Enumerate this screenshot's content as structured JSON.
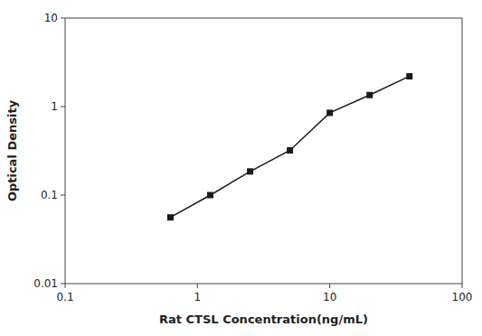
{
  "chart_data": {
    "type": "line",
    "x": [
      0.625,
      1.25,
      2.5,
      5,
      10,
      20,
      40
    ],
    "values": [
      0.056,
      0.1,
      0.185,
      0.32,
      0.85,
      1.35,
      2.2
    ],
    "xlabel": "Rat CTSL Concentration(ng/mL)",
    "ylabel": "Optical Density",
    "xlim": [
      0.1,
      100
    ],
    "ylim": [
      0.01,
      10
    ],
    "xticks": [
      0.1,
      1,
      10,
      100
    ],
    "yticks": [
      0.01,
      0.1,
      1,
      10
    ],
    "log": true,
    "grid": false,
    "color": "#1a1a1a",
    "marker": "square",
    "line_style": "solid"
  }
}
